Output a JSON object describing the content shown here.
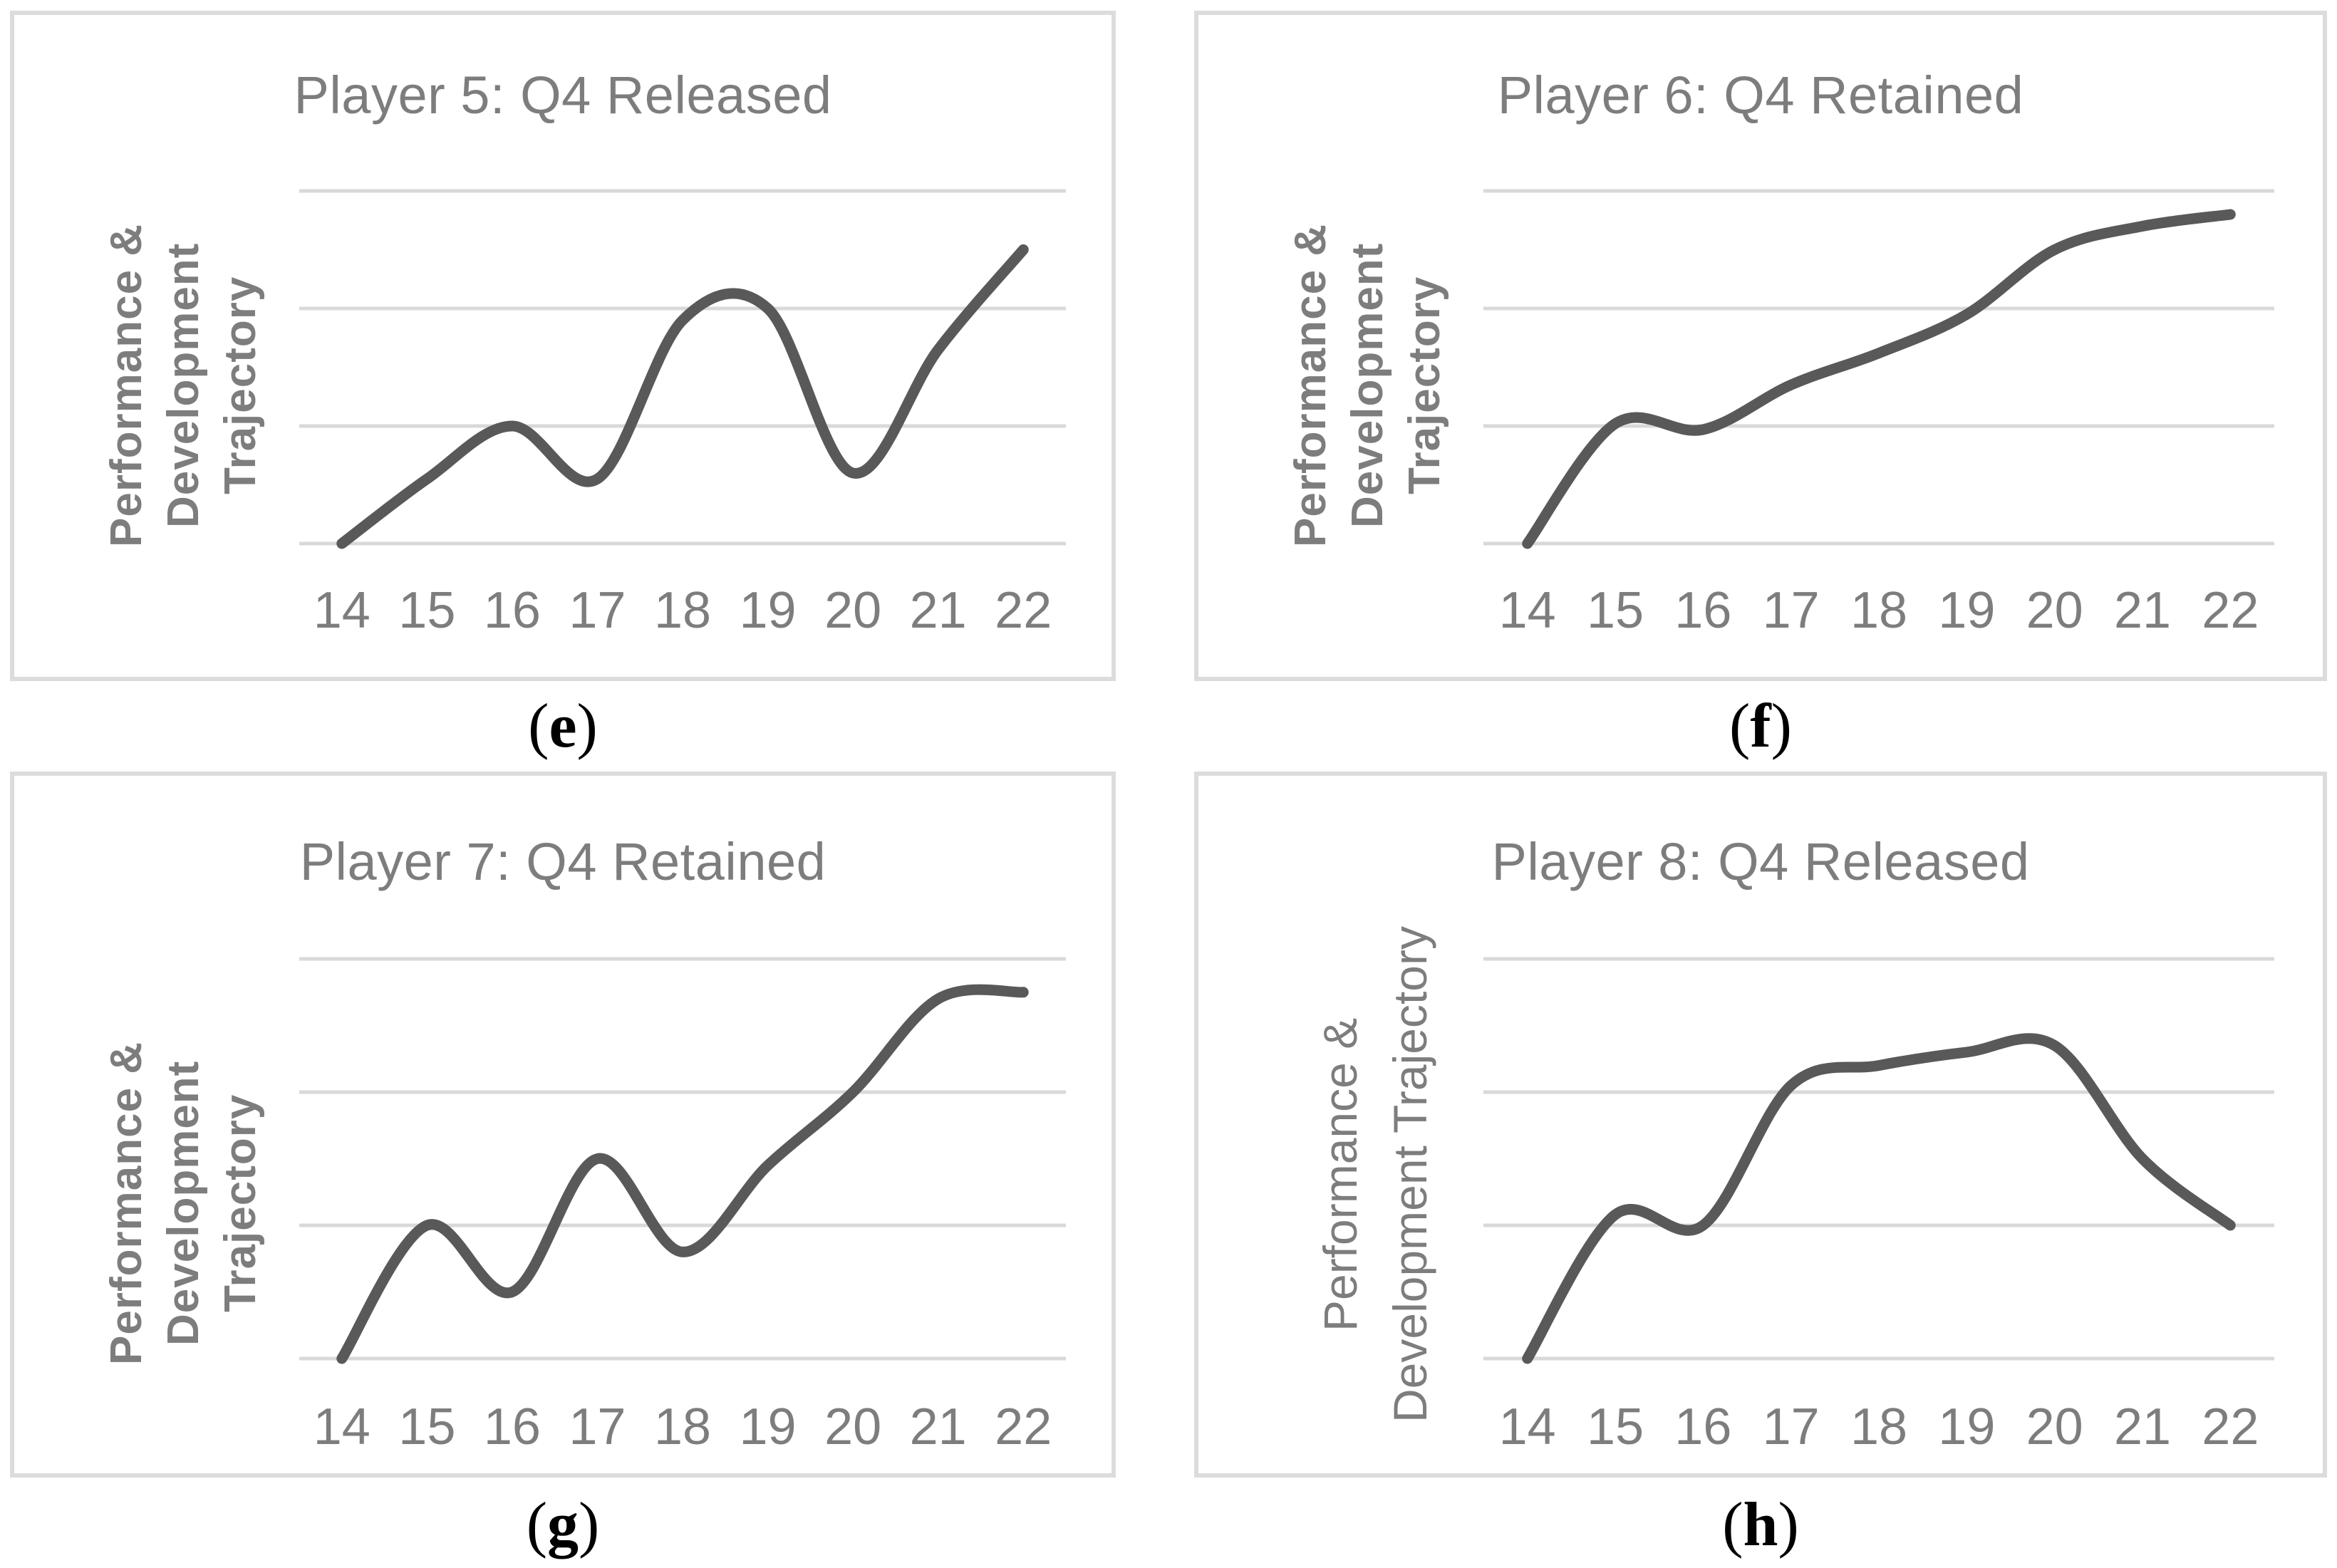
{
  "colors": {
    "line": "#595959",
    "gridline": "#d9d9d9",
    "panel_border": "#dcdcdc",
    "text_gray": "#7d7d7d",
    "caption": "#000000",
    "background": "#ffffff"
  },
  "chart_data": [
    {
      "type": "line",
      "panel": "e",
      "title": "Player 5: Q4 Released",
      "caption": {
        "open": "(",
        "letter": "e",
        "close": ")"
      },
      "ylabel_lines": {
        "l1": "Performance &",
        "l2": "Development",
        "l3": "Trajectory"
      },
      "ylabel_text": "Performance & Development Trajectory",
      "ylabel_bold": true,
      "x_ticks": [
        "14",
        "15",
        "16",
        "17",
        "18",
        "19",
        "20",
        "21",
        "22"
      ],
      "x": [
        14,
        15,
        16,
        17,
        18,
        19,
        20,
        21,
        22
      ],
      "values": [
        0,
        0.55,
        1.0,
        0.55,
        1.9,
        2.0,
        0.6,
        1.65,
        2.5
      ],
      "ylim": [
        0,
        3
      ],
      "gridline_values": [
        0,
        1,
        2,
        3
      ],
      "y_tick_labels_shown": false,
      "smooth": true,
      "legend_shown": false
    },
    {
      "type": "line",
      "panel": "f",
      "title": "Player 6: Q4 Retained",
      "caption": {
        "open": "(",
        "letter": "f",
        "close": ")"
      },
      "ylabel_lines": {
        "l1": "Performance &",
        "l2": "Development",
        "l3": "Trajectory"
      },
      "ylabel_text": "Performance & Development Trajectory",
      "ylabel_bold": true,
      "x_ticks": [
        "14",
        "15",
        "16",
        "17",
        "18",
        "19",
        "20",
        "21",
        "22"
      ],
      "x": [
        14,
        15,
        16,
        17,
        18,
        19,
        20,
        21,
        22
      ],
      "values": [
        0,
        1.02,
        0.97,
        1.35,
        1.62,
        1.95,
        2.5,
        2.7,
        2.8
      ],
      "ylim": [
        0,
        3
      ],
      "gridline_values": [
        0,
        1,
        2,
        3
      ],
      "y_tick_labels_shown": false,
      "smooth": true,
      "legend_shown": false
    },
    {
      "type": "line",
      "panel": "g",
      "title": "Player 7: Q4 Retained",
      "caption": {
        "open": "(",
        "letter": "g",
        "close": ")"
      },
      "ylabel_lines": {
        "l1": "Performance &",
        "l2": "Development",
        "l3": "Trajectory"
      },
      "ylabel_text": "Performance & Development Trajectory",
      "ylabel_bold": true,
      "x_ticks": [
        "14",
        "15",
        "16",
        "17",
        "18",
        "19",
        "20",
        "21",
        "22"
      ],
      "x": [
        14,
        15,
        16,
        17,
        18,
        19,
        20,
        21,
        22
      ],
      "values": [
        0,
        1.0,
        0.5,
        1.5,
        0.8,
        1.45,
        2.0,
        2.7,
        2.75
      ],
      "ylim": [
        0,
        3
      ],
      "gridline_values": [
        0,
        1,
        2,
        3
      ],
      "y_tick_labels_shown": false,
      "smooth": true,
      "legend_shown": false
    },
    {
      "type": "line",
      "panel": "h",
      "title": "Player 8: Q4 Released",
      "caption": {
        "open": "(",
        "letter": "h",
        "close": ")"
      },
      "ylabel_lines": {
        "l1": "Performance &",
        "l2": "Development Trajectory"
      },
      "ylabel_text": "Performance & Development Trajectory",
      "ylabel_bold": false,
      "x_ticks": [
        "14",
        "15",
        "16",
        "17",
        "18",
        "19",
        "20",
        "21",
        "22"
      ],
      "x": [
        14,
        15,
        16,
        17,
        18,
        19,
        20,
        21,
        22
      ],
      "values": [
        0,
        1.08,
        1.0,
        2.05,
        2.2,
        2.3,
        2.35,
        1.5,
        1.0
      ],
      "ylim": [
        0,
        3
      ],
      "gridline_values": [
        0,
        1,
        2,
        3
      ],
      "y_tick_labels_shown": false,
      "smooth": true,
      "legend_shown": false
    }
  ]
}
